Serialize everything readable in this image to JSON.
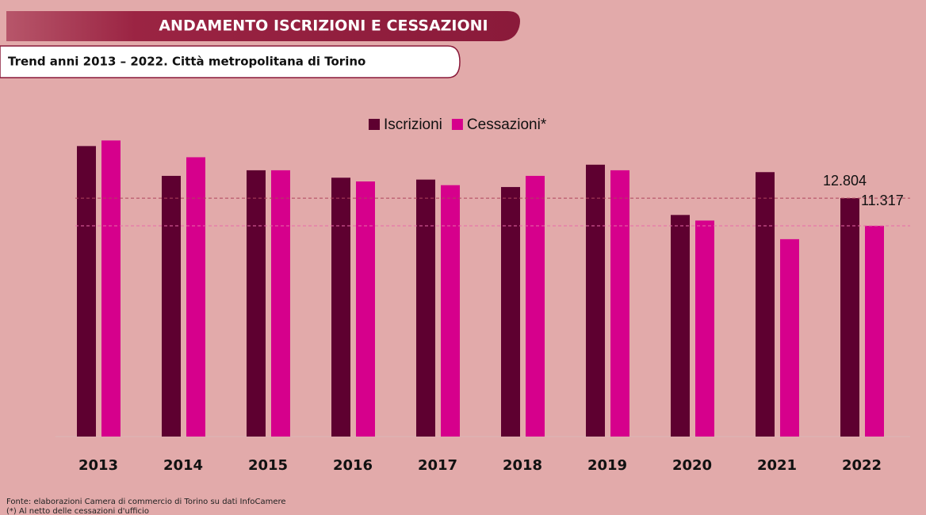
{
  "chart_data": {
    "type": "bar",
    "title": "ANDAMENTO ISCRIZIONI E CESSAZIONI",
    "subtitle": "Trend anni 2013 – 2022. Città metropolitana di Torino",
    "categories": [
      "2013",
      "2014",
      "2015",
      "2016",
      "2017",
      "2018",
      "2019",
      "2020",
      "2021",
      "2022"
    ],
    "series": [
      {
        "name": "Iscrizioni",
        "color": "#5e0030",
        "values": [
          15600,
          14000,
          14300,
          13900,
          13800,
          13400,
          14600,
          11900,
          14200,
          12804
        ],
        "value_labels": [
          null,
          null,
          null,
          null,
          null,
          null,
          null,
          null,
          null,
          "12.804"
        ]
      },
      {
        "name": "Cessazioni*",
        "color": "#d6008c",
        "values": [
          15900,
          15000,
          14300,
          13700,
          13500,
          14000,
          14300,
          11600,
          10600,
          11317
        ],
        "value_labels": [
          null,
          null,
          null,
          null,
          null,
          null,
          null,
          null,
          null,
          "11.317"
        ]
      }
    ],
    "ylim": [
      0,
      17700
    ],
    "notes": [
      "Fonte: elaborazioni Camera di commercio di Torino su dati InfoCamere",
      "(*) Al netto delle cessazioni d'ufficio"
    ]
  }
}
